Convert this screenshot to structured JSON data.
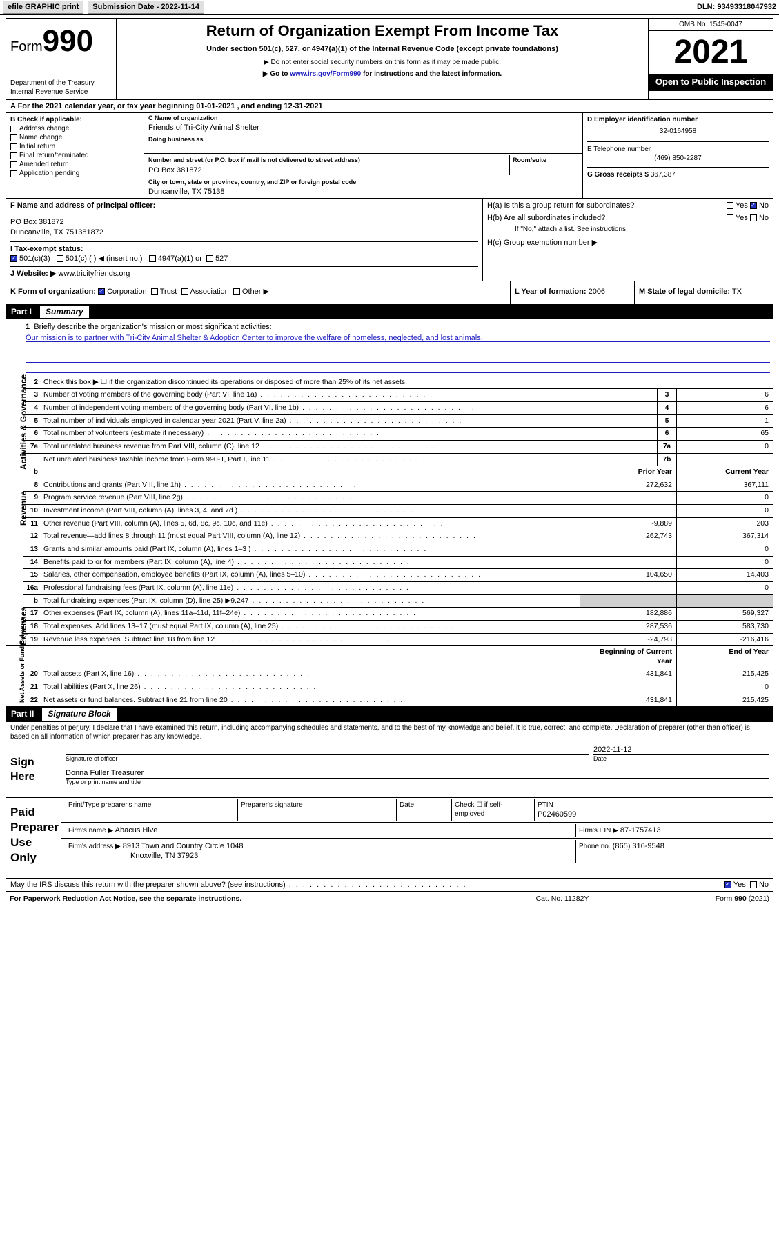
{
  "topbar": {
    "efile": "efile GRAPHIC print",
    "submission_label": "Submission Date - 2022-11-14",
    "dln_label": "DLN: 93493318047932"
  },
  "header": {
    "form_word": "Form",
    "form_num": "990",
    "dept": "Department of the Treasury",
    "irs": "Internal Revenue Service",
    "title": "Return of Organization Exempt From Income Tax",
    "subtitle": "Under section 501(c), 527, or 4947(a)(1) of the Internal Revenue Code (except private foundations)",
    "note1": "▶ Do not enter social security numbers on this form as it may be made public.",
    "note2_pre": "▶ Go to ",
    "note2_link": "www.irs.gov/Form990",
    "note2_post": " for instructions and the latest information.",
    "omb": "OMB No. 1545-0047",
    "year": "2021",
    "open_pub": "Open to Public Inspection"
  },
  "line_a": {
    "text_pre": "A For the 2021 calendar year, or tax year beginning ",
    "begin": "01-01-2021",
    "mid": " , and ending ",
    "end": "12-31-2021"
  },
  "box_b": {
    "heading": "B Check if applicable:",
    "items": [
      "Address change",
      "Name change",
      "Initial return",
      "Final return/terminated",
      "Amended return",
      "Application pending"
    ]
  },
  "box_c": {
    "name_lbl": "C Name of organization",
    "name": "Friends of Tri-City Animal Shelter",
    "dba_lbl": "Doing business as",
    "dba": "",
    "street_lbl": "Number and street (or P.O. box if mail is not delivered to street address)",
    "room_lbl": "Room/suite",
    "street": "PO Box 381872",
    "city_lbl": "City or town, state or province, country, and ZIP or foreign postal code",
    "city": "Duncanville, TX  75138"
  },
  "box_d": {
    "lbl": "D Employer identification number",
    "val": "32-0164958"
  },
  "box_e": {
    "lbl": "E Telephone number",
    "val": "(469) 850-2287"
  },
  "box_g": {
    "lbl": "G Gross receipts $",
    "val": "367,387"
  },
  "box_f": {
    "lbl": "F Name and address of principal officer:",
    "line1": "PO Box 381872",
    "line2": "Duncanville, TX  751381872"
  },
  "box_h": {
    "a_lbl": "H(a)  Is this a group return for subordinates?",
    "a_yes": "Yes",
    "a_no": "No",
    "b_lbl": "H(b)  Are all subordinates included?",
    "note": "If \"No,\" attach a list. See instructions.",
    "c_lbl": "H(c)  Group exemption number ▶"
  },
  "row_i": {
    "lbl": "I    Tax-exempt status:",
    "opt1": "501(c)(3)",
    "opt2": "501(c) (  ) ◀ (insert no.)",
    "opt3": "4947(a)(1) or",
    "opt4": "527"
  },
  "row_j": {
    "lbl": "J    Website: ▶",
    "val": "www.tricityfriends.org"
  },
  "row_k": {
    "lbl": "K Form of organization:",
    "opts": [
      "Corporation",
      "Trust",
      "Association",
      "Other ▶"
    ]
  },
  "row_l": {
    "lbl": "L Year of formation:",
    "val": "2006"
  },
  "row_m": {
    "lbl": "M State of legal domicile:",
    "val": "TX"
  },
  "part1_hdr": {
    "part": "Part I",
    "title": "Summary"
  },
  "side_tabs": {
    "gov": "Activities & Governance",
    "rev": "Revenue",
    "exp": "Expenses",
    "net": "Net Assets or Fund Balances"
  },
  "p1_line1": {
    "num": "1",
    "text": "Briefly describe the organization's mission or most significant activities:",
    "mission": "Our mission is to partner with Tri-City Animal Shelter & Adoption Center to improve the welfare of homeless, neglected, and lost animals."
  },
  "p1_line2": {
    "num": "2",
    "text": "Check this box ▶ ☐ if the organization discontinued its operations or disposed of more than 25% of its net assets."
  },
  "gov_rows": [
    {
      "n": "3",
      "d": "Number of voting members of the governing body (Part VI, line 1a)",
      "box": "3",
      "v": "6"
    },
    {
      "n": "4",
      "d": "Number of independent voting members of the governing body (Part VI, line 1b)",
      "box": "4",
      "v": "6"
    },
    {
      "n": "5",
      "d": "Total number of individuals employed in calendar year 2021 (Part V, line 2a)",
      "box": "5",
      "v": "1"
    },
    {
      "n": "6",
      "d": "Total number of volunteers (estimate if necessary)",
      "box": "6",
      "v": "65"
    },
    {
      "n": "7a",
      "d": "Total unrelated business revenue from Part VIII, column (C), line 12",
      "box": "7a",
      "v": "0"
    },
    {
      "n": "",
      "d": "Net unrelated business taxable income from Form 990-T, Part I, line 11",
      "box": "7b",
      "v": ""
    }
  ],
  "col_hdrs": {
    "prior": "Prior Year",
    "current": "Current Year"
  },
  "rev_rows": [
    {
      "n": "8",
      "d": "Contributions and grants (Part VIII, line 1h)",
      "p": "272,632",
      "c": "367,111"
    },
    {
      "n": "9",
      "d": "Program service revenue (Part VIII, line 2g)",
      "p": "",
      "c": "0"
    },
    {
      "n": "10",
      "d": "Investment income (Part VIII, column (A), lines 3, 4, and 7d )",
      "p": "",
      "c": "0"
    },
    {
      "n": "11",
      "d": "Other revenue (Part VIII, column (A), lines 5, 6d, 8c, 9c, 10c, and 11e)",
      "p": "-9,889",
      "c": "203"
    },
    {
      "n": "12",
      "d": "Total revenue—add lines 8 through 11 (must equal Part VIII, column (A), line 12)",
      "p": "262,743",
      "c": "367,314"
    }
  ],
  "exp_rows": [
    {
      "n": "13",
      "d": "Grants and similar amounts paid (Part IX, column (A), lines 1–3 )",
      "p": "",
      "c": "0"
    },
    {
      "n": "14",
      "d": "Benefits paid to or for members (Part IX, column (A), line 4)",
      "p": "",
      "c": "0"
    },
    {
      "n": "15",
      "d": "Salaries, other compensation, employee benefits (Part IX, column (A), lines 5–10)",
      "p": "104,650",
      "c": "14,403"
    },
    {
      "n": "16a",
      "d": "Professional fundraising fees (Part IX, column (A), line 11e)",
      "p": "",
      "c": "0"
    },
    {
      "n": "b",
      "d": "Total fundraising expenses (Part IX, column (D), line 25) ▶9,247",
      "p": "SHADE",
      "c": "SHADE"
    },
    {
      "n": "17",
      "d": "Other expenses (Part IX, column (A), lines 11a–11d, 11f–24e)",
      "p": "182,886",
      "c": "569,327"
    },
    {
      "n": "18",
      "d": "Total expenses. Add lines 13–17 (must equal Part IX, column (A), line 25)",
      "p": "287,536",
      "c": "583,730"
    },
    {
      "n": "19",
      "d": "Revenue less expenses. Subtract line 18 from line 12",
      "p": "-24,793",
      "c": "-216,416"
    }
  ],
  "net_hdrs": {
    "begin": "Beginning of Current Year",
    "end": "End of Year"
  },
  "net_rows": [
    {
      "n": "20",
      "d": "Total assets (Part X, line 16)",
      "p": "431,841",
      "c": "215,425"
    },
    {
      "n": "21",
      "d": "Total liabilities (Part X, line 26)",
      "p": "",
      "c": "0"
    },
    {
      "n": "22",
      "d": "Net assets or fund balances. Subtract line 21 from line 20",
      "p": "431,841",
      "c": "215,425"
    }
  ],
  "part2_hdr": {
    "part": "Part II",
    "title": "Signature Block"
  },
  "penalty": "Under penalties of perjury, I declare that I have examined this return, including accompanying schedules and statements, and to the best of my knowledge and belief, it is true, correct, and complete. Declaration of preparer (other than officer) is based on all information of which preparer has any knowledge.",
  "sign": {
    "here": "Sign Here",
    "sig_lbl": "Signature of officer",
    "date_lbl": "Date",
    "date_val": "2022-11-12",
    "name": "Donna Fuller  Treasurer",
    "name_lbl": "Type or print name and title"
  },
  "paid": {
    "title": "Paid Preparer Use Only",
    "h1": "Print/Type preparer's name",
    "h2": "Preparer's signature",
    "h3": "Date",
    "h4_pre": "Check ☐ if self-employed",
    "ptin_lbl": "PTIN",
    "ptin": "P02460599",
    "firm_name_lbl": "Firm's name    ▶",
    "firm_name": "Abacus Hive",
    "firm_ein_lbl": "Firm's EIN ▶",
    "firm_ein": "87-1757413",
    "firm_addr_lbl": "Firm's address ▶",
    "firm_addr1": "8913 Town and Country Circle 1048",
    "firm_addr2": "Knoxville, TN  37923",
    "phone_lbl": "Phone no.",
    "phone": "(865) 316-9548"
  },
  "discuss": {
    "q": "May the IRS discuss this return with the preparer shown above? (see instructions)",
    "yes": "Yes",
    "no": "No"
  },
  "footer": {
    "left": "For Paperwork Reduction Act Notice, see the separate instructions.",
    "mid": "Cat. No. 11282Y",
    "right": "Form 990 (2021)"
  }
}
